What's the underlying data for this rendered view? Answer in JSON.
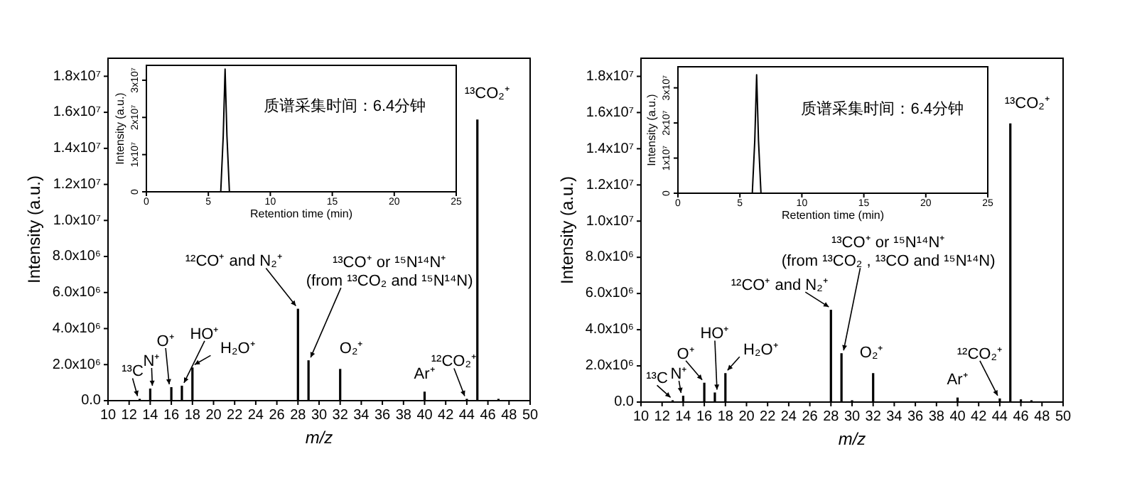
{
  "chart_data": [
    {
      "type": "bar",
      "xlabel": "m/z",
      "ylabel": "Intensity (a.u.)",
      "color": "#000000",
      "x": [
        13,
        14,
        16,
        17,
        18,
        28,
        29,
        32,
        40,
        44,
        45,
        47
      ],
      "values": [
        100000,
        670000,
        750000,
        830000,
        1840000,
        5100000,
        2240000,
        1760000,
        500000,
        100000,
        15600000,
        100000
      ],
      "xlim": [
        10,
        50
      ],
      "ylim": [
        0,
        19000000
      ],
      "xticks": [
        10,
        12,
        14,
        16,
        18,
        20,
        22,
        24,
        26,
        28,
        30,
        32,
        34,
        36,
        38,
        40,
        42,
        44,
        46,
        48,
        50
      ],
      "yticks": [
        {
          "value": 0,
          "label": "0.0"
        },
        {
          "value": 2000000,
          "label": "2.0x10⁶"
        },
        {
          "value": 4000000,
          "label": "4.0x10⁶"
        },
        {
          "value": 6000000,
          "label": "6.0x10⁶"
        },
        {
          "value": 8000000,
          "label": "8.0x10⁶"
        },
        {
          "value": 10000000,
          "label": "1.0x10⁷"
        },
        {
          "value": 12000000,
          "label": "1.2x10⁷"
        },
        {
          "value": 14000000,
          "label": "1.4x10⁷"
        },
        {
          "value": 16000000,
          "label": "1.6x10⁷"
        },
        {
          "value": 18000000,
          "label": "1.8x10⁷"
        }
      ],
      "annotations": [
        {
          "text": "¹³C",
          "x": 13,
          "y": 100000
        },
        {
          "text": "N⁺",
          "x": 14,
          "y": 670000
        },
        {
          "text": "O⁺",
          "x": 16,
          "y": 750000
        },
        {
          "text": "HO⁺",
          "x": 17,
          "y": 830000
        },
        {
          "text": "H₂O⁺",
          "x": 18,
          "y": 1840000
        },
        {
          "text": "¹²CO⁺ and N₂⁺",
          "x": 28,
          "y": 5100000
        },
        {
          "text": "¹³CO⁺ or ¹⁵N¹⁴N⁺\n(from ¹³CO₂ and ¹⁵N¹⁴N)",
          "x": 29,
          "y": 2240000
        },
        {
          "text": "O₂⁺",
          "x": 32,
          "y": 1760000
        },
        {
          "text": "Ar⁺",
          "x": 40,
          "y": 500000
        },
        {
          "text": "¹²CO₂⁺",
          "x": 44,
          "y": 100000
        },
        {
          "text": "¹³CO₂⁺",
          "x": 45,
          "y": 15600000
        }
      ]
    },
    {
      "type": "line",
      "xlabel": "Retention time (min)",
      "ylabel": "Intensity (a.u.)",
      "color": "#000000",
      "x": [
        0,
        6.0,
        6.2,
        6.35,
        6.5,
        6.7,
        25
      ],
      "values": [
        0,
        0,
        15000000,
        33000000,
        15000000,
        0,
        0
      ],
      "xlim": [
        0,
        25
      ],
      "ylim": [
        0,
        34000000
      ],
      "xticks": [
        0,
        5,
        10,
        15,
        20,
        25
      ],
      "yticks": [
        0,
        {
          "value": 10000000,
          "label": "1x10⁷"
        },
        {
          "value": 20000000,
          "label": "2x10⁷"
        },
        {
          "value": 30000000,
          "label": "3x10⁷"
        }
      ],
      "annotations": [
        "质谱采集时间：6.4分钟"
      ]
    },
    {
      "type": "bar",
      "xlabel": "m/z",
      "ylabel": "Intensity (a.u.)",
      "color": "#000000",
      "x": [
        13,
        14,
        16,
        17,
        18,
        28,
        29,
        30,
        32,
        40,
        44,
        45,
        46,
        47
      ],
      "values": [
        100000,
        350000,
        1070000,
        530000,
        1600000,
        5100000,
        2700000,
        100000,
        1600000,
        250000,
        200000,
        15400000,
        150000,
        100000
      ],
      "xlim": [
        10,
        50
      ],
      "ylim": [
        0,
        19000000
      ],
      "xticks": [
        10,
        12,
        14,
        16,
        18,
        20,
        22,
        24,
        26,
        28,
        30,
        32,
        34,
        36,
        38,
        40,
        42,
        44,
        46,
        48,
        50
      ],
      "yticks": [
        {
          "value": 0,
          "label": "0.0"
        },
        {
          "value": 2000000,
          "label": "2.0x10⁶"
        },
        {
          "value": 4000000,
          "label": "4.0x10⁶"
        },
        {
          "value": 6000000,
          "label": "6.0x10⁶"
        },
        {
          "value": 8000000,
          "label": "8.0x10⁶"
        },
        {
          "value": 10000000,
          "label": "1.0x10⁷"
        },
        {
          "value": 12000000,
          "label": "1.2x10⁷"
        },
        {
          "value": 14000000,
          "label": "1.4x10⁷"
        },
        {
          "value": 16000000,
          "label": "1.6x10⁷"
        },
        {
          "value": 18000000,
          "label": "1.8x10⁷"
        }
      ],
      "annotations": [
        {
          "text": "¹³C",
          "x": 13,
          "y": 100000
        },
        {
          "text": "N⁺",
          "x": 14,
          "y": 350000
        },
        {
          "text": "O⁺",
          "x": 16,
          "y": 1070000
        },
        {
          "text": "HO⁺",
          "x": 17,
          "y": 530000
        },
        {
          "text": "H₂O⁺",
          "x": 18,
          "y": 1600000
        },
        {
          "text": "¹²CO⁺ and N₂⁺",
          "x": 28,
          "y": 5100000
        },
        {
          "text": "¹³CO⁺ or ¹⁵N¹⁴N⁺\n(from ¹³CO₂ , ¹³CO and ¹⁵N¹⁴N)",
          "x": 29,
          "y": 2700000
        },
        {
          "text": "O₂⁺",
          "x": 32,
          "y": 1600000
        },
        {
          "text": "Ar⁺",
          "x": 40,
          "y": 250000
        },
        {
          "text": "¹²CO₂⁺",
          "x": 44,
          "y": 200000
        },
        {
          "text": "¹³CO₂⁺",
          "x": 45,
          "y": 15400000
        }
      ]
    },
    {
      "type": "line",
      "xlabel": "Retention time (min)",
      "ylabel": "Intensity (a.u.)",
      "color": "#000000",
      "x": [
        0,
        6.0,
        6.2,
        6.35,
        6.5,
        6.7,
        25
      ],
      "values": [
        0,
        0,
        15000000,
        33700000,
        15000000,
        0,
        0
      ],
      "xlim": [
        0,
        25
      ],
      "ylim": [
        0,
        36000000
      ],
      "xticks": [
        0,
        5,
        10,
        15,
        20,
        25
      ],
      "yticks": [
        0,
        {
          "value": 10000000,
          "label": "1x10⁷"
        },
        {
          "value": 20000000,
          "label": "2x10⁷"
        },
        {
          "value": 30000000,
          "label": "3x10⁷"
        }
      ],
      "annotations": [
        "质谱采集时间：6.4分钟"
      ]
    }
  ]
}
